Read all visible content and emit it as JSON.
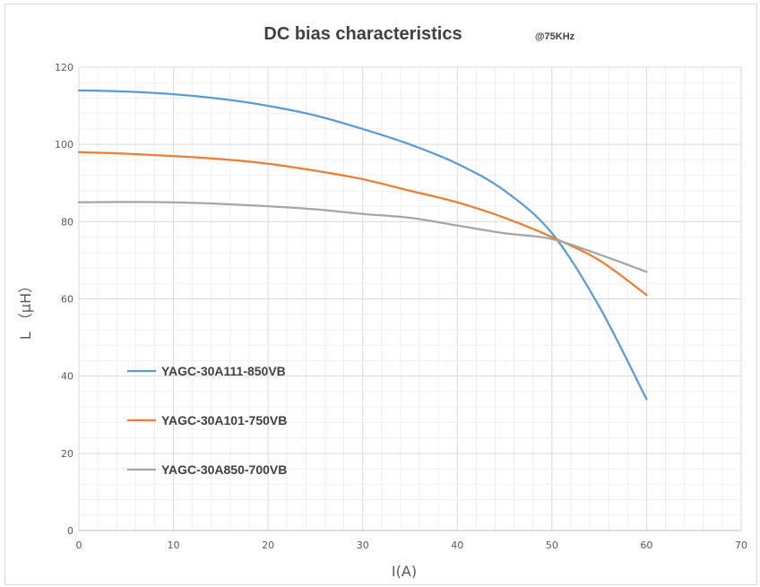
{
  "chart_data": {
    "type": "line",
    "title": "DC bias characteristics",
    "subtitle": "@75KHz",
    "xlabel": "I(A)",
    "ylabel": "L （μH）",
    "xlim": [
      0,
      70
    ],
    "ylim": [
      0,
      120
    ],
    "x_ticks": [
      0,
      10,
      20,
      30,
      40,
      50,
      60,
      70
    ],
    "y_ticks": [
      0,
      20,
      40,
      60,
      80,
      100,
      120
    ],
    "grid": true,
    "legend_position": "bottom-left",
    "series": [
      {
        "name": "YAGC-30A111-850VB",
        "color": "#5b9bd5",
        "x": [
          0,
          5,
          10,
          15,
          20,
          25,
          30,
          35,
          40,
          45,
          50,
          55,
          60
        ],
        "y": [
          114,
          113.7,
          113,
          111.8,
          110,
          107.5,
          104,
          100,
          95,
          88,
          77,
          58,
          34
        ]
      },
      {
        "name": "YAGC-30A101-750VB",
        "color": "#ed7d31",
        "x": [
          0,
          5,
          10,
          15,
          20,
          25,
          30,
          35,
          40,
          45,
          50,
          55,
          60
        ],
        "y": [
          98,
          97.6,
          97,
          96.2,
          95,
          93.2,
          91,
          88,
          85,
          81,
          76,
          70,
          61
        ]
      },
      {
        "name": "YAGC-30A850-700VB",
        "color": "#a5a5a5",
        "x": [
          0,
          5,
          10,
          15,
          20,
          25,
          30,
          35,
          40,
          45,
          50,
          55,
          60
        ],
        "y": [
          85,
          85.1,
          85,
          84.6,
          84,
          83.2,
          82,
          81,
          79,
          77,
          75.5,
          71.5,
          67
        ]
      }
    ]
  }
}
